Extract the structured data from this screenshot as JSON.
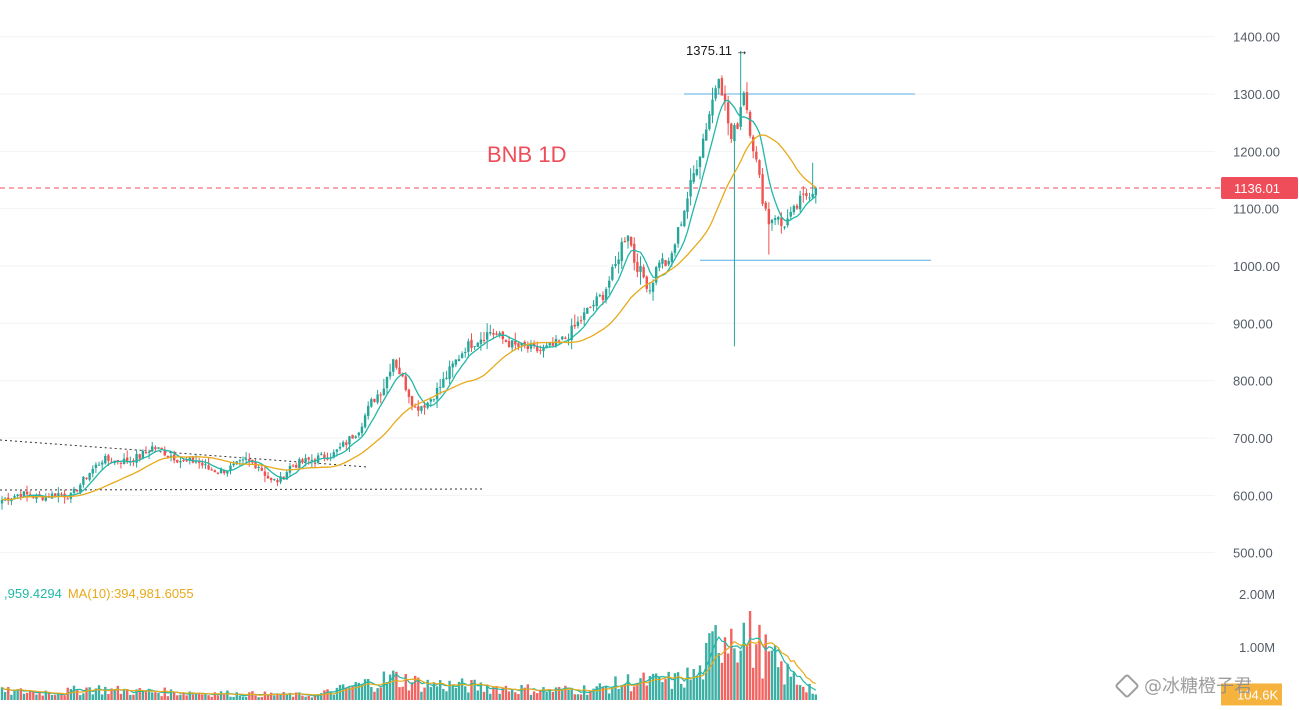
{
  "chart_data": {
    "type": "candlestick",
    "title": "BNB 1D",
    "current_price_label": "1136.01",
    "peak_label": "1375.11",
    "peak_arrow": "→",
    "y_axis_ticks": [
      "1400.00",
      "1300.00",
      "1200.00",
      "1100.00",
      "1000.00",
      "900.00",
      "800.00",
      "700.00",
      "600.00",
      "500.00"
    ],
    "y_ticks_values": [
      1400,
      1300,
      1200,
      1100,
      1000,
      900,
      800,
      700,
      600,
      500
    ],
    "ylim": [
      500,
      1400
    ],
    "volume_axis_ticks": [
      "2.00M",
      "1.00M",
      "104.6K"
    ],
    "volume_ticks_values": [
      2000000,
      1000000
    ],
    "volume_ylim": [
      0,
      2000000
    ],
    "current_volume_value": 104600,
    "current_price": 1136.01,
    "peak_value": 1375.11,
    "resistance_level": 1300,
    "support_level": 1010,
    "ma_legend": {
      "ma5": ",959.4294",
      "ma10": "MA(10):394,981.6055"
    },
    "anchors": [
      [
        0,
        592
      ],
      [
        6,
        603
      ],
      [
        12,
        596
      ],
      [
        18,
        603
      ],
      [
        22,
        598
      ],
      [
        28,
        640
      ],
      [
        32,
        662
      ],
      [
        36,
        660
      ],
      [
        40,
        660
      ],
      [
        44,
        668
      ],
      [
        48,
        684
      ],
      [
        50,
        680
      ],
      [
        54,
        670
      ],
      [
        58,
        658
      ],
      [
        62,
        660
      ],
      [
        66,
        646
      ],
      [
        70,
        642
      ],
      [
        74,
        650
      ],
      [
        78,
        660
      ],
      [
        82,
        652
      ],
      [
        86,
        624
      ],
      [
        89,
        627
      ],
      [
        92,
        650
      ],
      [
        96,
        658
      ],
      [
        100,
        664
      ],
      [
        106,
        672
      ],
      [
        110,
        692
      ],
      [
        114,
        716
      ],
      [
        118,
        762
      ],
      [
        122,
        790
      ],
      [
        125,
        840
      ],
      [
        127,
        815
      ],
      [
        129,
        790
      ],
      [
        132,
        752
      ],
      [
        136,
        762
      ],
      [
        140,
        790
      ],
      [
        144,
        826
      ],
      [
        148,
        858
      ],
      [
        152,
        872
      ],
      [
        156,
        886
      ],
      [
        160,
        872
      ],
      [
        164,
        860
      ],
      [
        168,
        856
      ],
      [
        172,
        852
      ],
      [
        176,
        860
      ],
      [
        180,
        874
      ],
      [
        184,
        900
      ],
      [
        188,
        928
      ],
      [
        192,
        950
      ],
      [
        196,
        1000
      ],
      [
        198,
        1038
      ],
      [
        200,
        1060
      ],
      [
        202,
        1010
      ],
      [
        204,
        990
      ],
      [
        207,
        960
      ],
      [
        210,
        1012
      ],
      [
        213,
        1000
      ],
      [
        216,
        1060
      ],
      [
        219,
        1120
      ],
      [
        223,
        1200
      ],
      [
        227,
        1290
      ],
      [
        229,
        1340
      ],
      [
        231,
        1280
      ],
      [
        233,
        1220
      ],
      [
        235,
        1250
      ],
      [
        237,
        1310
      ],
      [
        239,
        1240
      ],
      [
        241,
        1180
      ],
      [
        243,
        1120
      ],
      [
        245,
        1078
      ],
      [
        247,
        1090
      ],
      [
        249,
        1070
      ],
      [
        252,
        1085
      ],
      [
        255,
        1112
      ],
      [
        258,
        1130
      ],
      [
        260,
        1136.01
      ]
    ],
    "volume_anchors": [
      [
        0,
        160000
      ],
      [
        20,
        150000
      ],
      [
        28,
        220000
      ],
      [
        40,
        170000
      ],
      [
        60,
        140000
      ],
      [
        80,
        110000
      ],
      [
        100,
        90000
      ],
      [
        112,
        250000
      ],
      [
        118,
        330000
      ],
      [
        125,
        420000
      ],
      [
        135,
        300000
      ],
      [
        150,
        260000
      ],
      [
        175,
        180000
      ],
      [
        190,
        210000
      ],
      [
        200,
        340000
      ],
      [
        215,
        360000
      ],
      [
        223,
        500000
      ],
      [
        229,
        1200000
      ],
      [
        233,
        1450000
      ],
      [
        237,
        1250000
      ],
      [
        243,
        900000
      ],
      [
        250,
        500000
      ],
      [
        258,
        250000
      ],
      [
        260,
        104600
      ]
    ],
    "colors": {
      "up": "#26a69a",
      "down": "#ef5350",
      "ma_fast": "#22b8a7",
      "ma_slow": "#e8a91a",
      "level_line": "#5aaee6",
      "current_line": "#ef4d5a",
      "volume_badge": "#f5b23c",
      "grid": "#f0f3f5"
    }
  },
  "watermark": "@冰糖橙子君"
}
